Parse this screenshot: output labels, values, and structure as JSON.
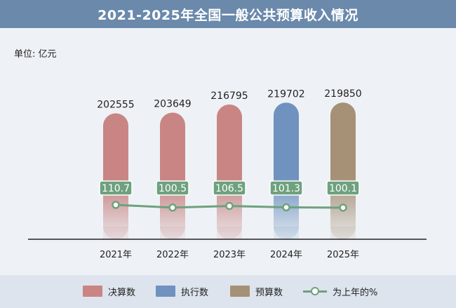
{
  "title": "2021-2025年全国一般公共预算收入情况",
  "unit_label": "单位: 亿元",
  "colors": {
    "final": "#c88584",
    "execution": "#6f92bf",
    "budget": "#a69177",
    "line": "#6ea17e"
  },
  "legend": [
    {
      "label": "决算数",
      "kind": "final"
    },
    {
      "label": "执行数",
      "kind": "execution"
    },
    {
      "label": "预算数",
      "kind": "budget"
    },
    {
      "label": "为上年的%",
      "kind": "line"
    }
  ],
  "chart_data": {
    "type": "bar",
    "title": "2021-2025年全国一般公共预算收入情况",
    "ylabel": "单位: 亿元",
    "categories": [
      "2021年",
      "2022年",
      "2023年",
      "2024年",
      "2025年"
    ],
    "series": [
      {
        "name": "决算数",
        "values": [
          202555,
          203649,
          216795,
          null,
          null
        ]
      },
      {
        "name": "执行数",
        "values": [
          null,
          null,
          null,
          219702,
          null
        ]
      },
      {
        "name": "预算数",
        "values": [
          null,
          null,
          null,
          null,
          219850
        ]
      },
      {
        "name": "为上年的%",
        "type": "line",
        "values": [
          110.7,
          100.5,
          106.5,
          101.3,
          100.1
        ]
      }
    ],
    "bar_values": [
      202555,
      203649,
      216795,
      219702,
      219850
    ],
    "bar_kinds": [
      "final",
      "final",
      "final",
      "execution",
      "budget"
    ],
    "ylim": [
      0,
      220000
    ],
    "grid": false,
    "legend_position": "bottom"
  }
}
